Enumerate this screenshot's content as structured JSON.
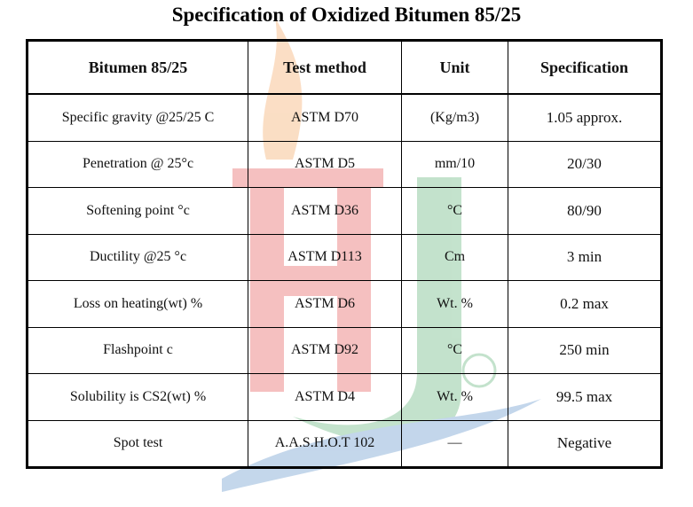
{
  "title": "Specification of Oxidized Bitumen 85/25",
  "table": {
    "headers": [
      "Bitumen 85/25",
      "Test method",
      "Unit",
      "Specification"
    ],
    "rows": [
      [
        "Specific gravity @25/25 C",
        "ASTM D70",
        "(Kg/m3)",
        "1.05 approx."
      ],
      [
        "Penetration @ 25°c",
        "ASTM D5",
        "mm/10",
        "20/30"
      ],
      [
        "Softening point °c",
        "ASTM D36",
        "°C",
        "80/90"
      ],
      [
        "Ductility @25 °c",
        "ASTM D113",
        "Cm",
        "3 min"
      ],
      [
        "Loss on heating(wt) %",
        "ASTM D6",
        "Wt. %",
        "0.2 max"
      ],
      [
        "Flashpoint c",
        "ASTM D92",
        "°C",
        "250 min"
      ],
      [
        "Solubility is CS2(wt) %",
        "ASTM D4",
        "Wt. %",
        "99.5 max"
      ],
      [
        "Spot test",
        "A.A.S.H.O.T 102",
        "—",
        "Negative"
      ]
    ]
  }
}
